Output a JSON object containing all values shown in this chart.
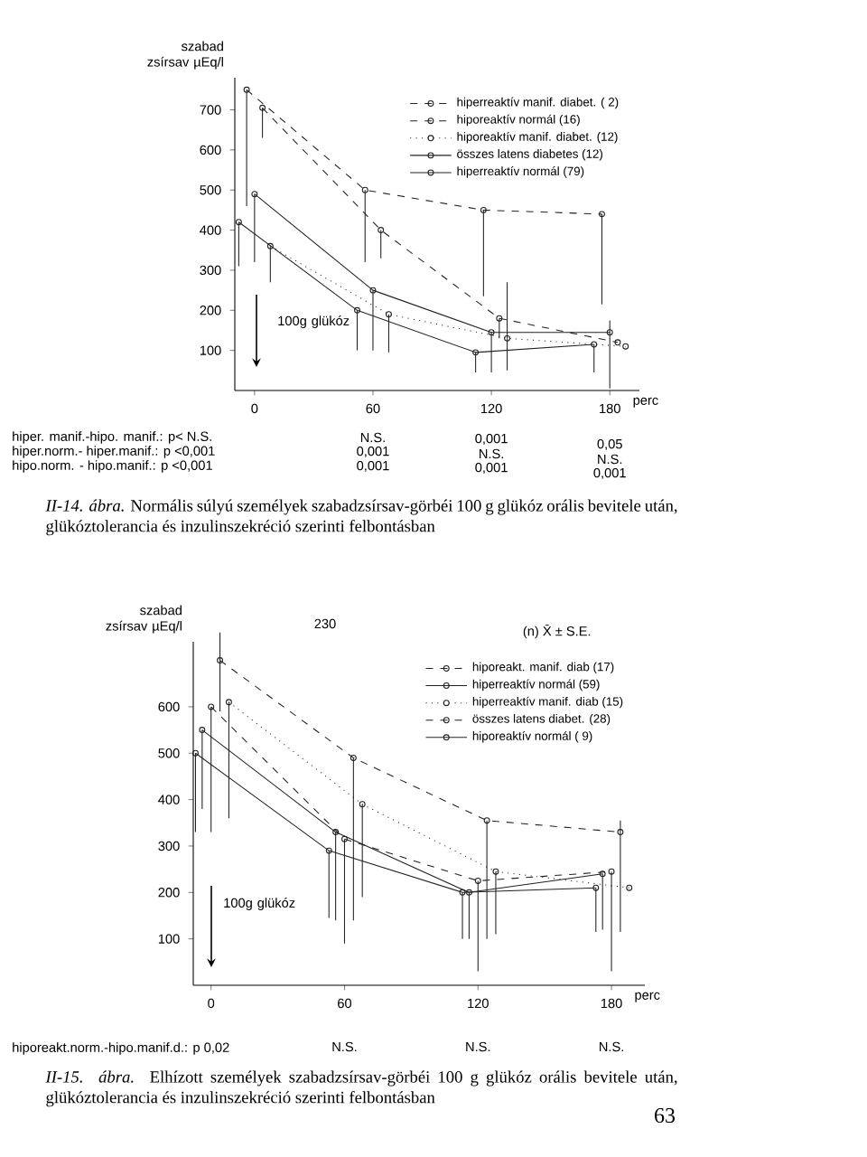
{
  "chart_data": [
    {
      "type": "line",
      "ylabel": "szabad zsírsav µEq/l",
      "xlabel": "perc",
      "x": [
        0,
        60,
        120,
        180
      ],
      "xlim": [
        -10,
        195
      ],
      "ylim": [
        0,
        780
      ],
      "xticks": [
        0,
        60,
        120,
        180
      ],
      "yticks": [
        100,
        200,
        300,
        400,
        500,
        600,
        700
      ],
      "marker": "circle",
      "legend": "top right",
      "series": [
        {
          "name": "hiperreaktív manif. diabet.   ( 2)",
          "color": "#222222",
          "line_style": "dashed",
          "x": [
            -4,
            56,
            116,
            176
          ],
          "values": [
            750,
            500,
            450,
            440
          ],
          "errors": [
            [
              460,
              750
            ],
            [
              320,
              500
            ],
            [
              235,
              450
            ],
            [
              215,
              440
            ]
          ]
        },
        {
          "name": "hiporeaktív normál               (16)",
          "color": "#222222",
          "line_style": "dashed",
          "x": [
            4,
            64,
            124,
            184
          ],
          "values": [
            705,
            400,
            180,
            120
          ],
          "errors": [
            [
              630,
              705
            ],
            [
              330,
              400
            ],
            [
              130,
              180
            ],
            null
          ]
        },
        {
          "name": "hiporeaktív manif. diabet.   (12)",
          "color": "#222222",
          "line_style": "dotted",
          "x": [
            8,
            68,
            128,
            188
          ],
          "values": [
            360,
            190,
            130,
            110
          ],
          "errors": [
            [
              270,
              360
            ],
            [
              95,
              190
            ],
            [
              50,
              270
            ],
            null
          ]
        },
        {
          "name": "összes latens diabetes       (12)",
          "color": "#222222",
          "line_style": "solid",
          "values": [
            490,
            250,
            145,
            145
          ],
          "errors": [
            [
              320,
              490
            ],
            [
              100,
              250
            ],
            [
              45,
              145
            ],
            [
              5,
              175
            ]
          ]
        },
        {
          "name": "hiperreaktív normál             (79)",
          "color": "#222222",
          "line_style": "solid",
          "x": [
            -8,
            52,
            112,
            172
          ],
          "values": [
            420,
            200,
            95,
            115
          ],
          "errors": [
            [
              310,
              420
            ],
            [
              100,
              200
            ],
            [
              45,
              95
            ],
            [
              45,
              115
            ]
          ]
        }
      ],
      "annotations": [
        "100g glükóz",
        "hiper. manif.-hipo. manif.: p< N.S.",
        "hiper.norm.- hiper.manif.: p <0,001",
        "hipo.norm. - hipo.manif.: p <0,001",
        "N.S.",
        "0,001",
        "0,001",
        "0,001",
        "N.S.",
        "0,001",
        "0,05",
        "N.S.",
        "0,001",
        "*II-14. ábra.* Normális súlyú személyek szabadzsírsav-görbéi 100 g glükóz orális bevitele után, glükóztolerancia és inzulinszekréció szerinti felbontásban"
      ]
    },
    {
      "type": "line",
      "ylabel": "szabad zsírsav µEq/l",
      "xlabel": "perc",
      "x": [
        0,
        60,
        120,
        180
      ],
      "xlim": [
        -8,
        195
      ],
      "ylim": [
        0,
        740
      ],
      "xticks": [
        0,
        60,
        120,
        180
      ],
      "yticks": [
        100,
        200,
        300,
        400,
        500,
        600
      ],
      "marker": "circle",
      "legend": "top right",
      "legend_title": "(n)            X̄ ± S.E.",
      "series": [
        {
          "name": "hiporeakt. manif. diab        (17)",
          "color": "#222222",
          "line_style": "dashed",
          "x": [
            4,
            64,
            124,
            184
          ],
          "values": [
            700,
            490,
            355,
            330
          ],
          "errors": [
            [
              590,
              760
            ],
            [
              140,
              490
            ],
            [
              100,
              355
            ],
            [
              115,
              355
            ]
          ]
        },
        {
          "name": "hiperreaktív normál             (59)",
          "color": "#222222",
          "line_style": "solid",
          "x": [
            -4,
            56,
            116,
            176
          ],
          "values": [
            550,
            330,
            200,
            240
          ],
          "errors": [
            [
              380,
              550
            ],
            [
              140,
              330
            ],
            [
              100,
              200
            ],
            [
              120,
              240
            ]
          ]
        },
        {
          "name": "hiperreaktív manif. diab     (15)",
          "color": "#222222",
          "line_style": "dotted",
          "x": [
            8,
            68,
            128,
            188
          ],
          "values": [
            610,
            390,
            245,
            210
          ],
          "errors": [
            [
              360,
              610
            ],
            [
              190,
              390
            ],
            [
              110,
              245
            ],
            null
          ]
        },
        {
          "name": "összes latens diabet.         (28)",
          "color": "#222222",
          "line_style": "dashed",
          "values": [
            600,
            315,
            225,
            245
          ],
          "errors": [
            [
              330,
              600
            ],
            [
              90,
              315
            ],
            [
              30,
              225
            ],
            [
              30,
              245
            ]
          ]
        },
        {
          "name": "hiporeaktív normál               ( 9)",
          "color": "#222222",
          "line_style": "solid",
          "x": [
            -7,
            53,
            113,
            173
          ],
          "values": [
            500,
            290,
            200,
            210
          ],
          "errors": [
            [
              330,
              500
            ],
            [
              145,
              290
            ],
            [
              100,
              200
            ],
            [
              115,
              210
            ]
          ]
        }
      ],
      "annotations": [
        "230",
        "100g glükóz",
        "hiporeakt.norm.-hipo.manif.d.: p  0,02",
        "N.S.",
        "N.S.",
        "N.S.",
        "*II-15. ábra.* Elhízott személyek szabadzsírsav-görbéi 100 g glükóz orális bevitele után, glükóztolerancia és inzulinszekréció szerinti felbontásban",
        "63"
      ]
    }
  ]
}
